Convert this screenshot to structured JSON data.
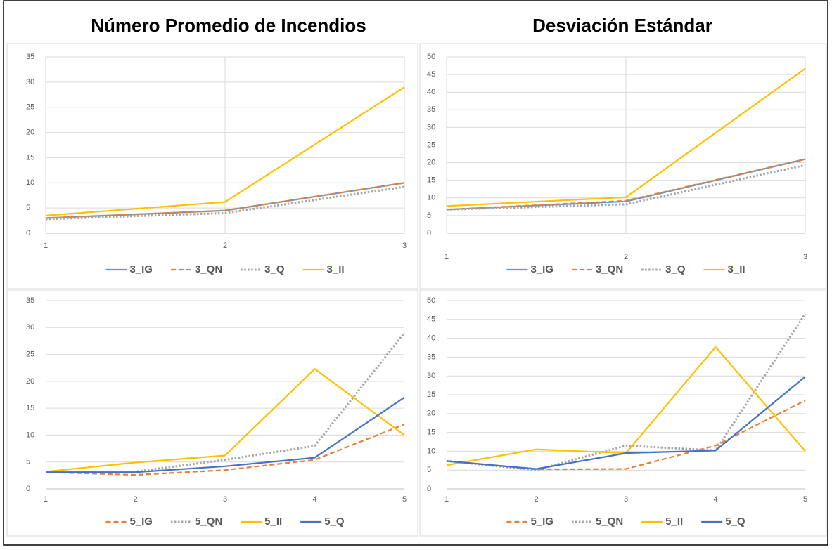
{
  "column_titles": [
    "Número Promedio de Incendios",
    "Desviación Estándar"
  ],
  "chart_data": [
    {
      "type": "line",
      "x": [
        1,
        2,
        3
      ],
      "xlim": [
        1,
        3
      ],
      "xticks": [
        1,
        2,
        3
      ],
      "ylim": [
        0,
        35
      ],
      "yticks": [
        0,
        5,
        10,
        15,
        20,
        25,
        30,
        35
      ],
      "grid": true,
      "xgrid": true,
      "series": [
        {
          "name": "3_IG",
          "color": "#5b9bd5",
          "dash": "solid",
          "values": [
            3,
            4.5,
            10
          ]
        },
        {
          "name": "3_QN",
          "color": "#ed7d31",
          "dash": "dash",
          "values": [
            3,
            4.5,
            10
          ]
        },
        {
          "name": "3_Q",
          "color": "#a5a5a5",
          "dash": "dot",
          "values": [
            2.8,
            4,
            9.2
          ]
        },
        {
          "name": "3_II",
          "color": "#ffc000",
          "dash": "solid",
          "values": [
            3.5,
            6.2,
            29
          ]
        }
      ]
    },
    {
      "type": "line",
      "x": [
        1,
        2,
        3
      ],
      "xlim": [
        1,
        3
      ],
      "xticks": [
        1,
        2,
        3
      ],
      "ylim": [
        0,
        50
      ],
      "yticks": [
        0,
        5,
        10,
        15,
        20,
        25,
        30,
        35,
        40,
        45,
        50
      ],
      "grid": true,
      "xgrid": true,
      "series": [
        {
          "name": "3_IG",
          "color": "#5b9bd5",
          "dash": "solid",
          "values": [
            6.7,
            9,
            21
          ]
        },
        {
          "name": "3_QN",
          "color": "#ed7d31",
          "dash": "dash",
          "values": [
            6.7,
            9.2,
            21
          ]
        },
        {
          "name": "3_Q",
          "color": "#a5a5a5",
          "dash": "dot",
          "values": [
            6.7,
            8.2,
            19.3
          ]
        },
        {
          "name": "3_II",
          "color": "#ffc000",
          "dash": "solid",
          "values": [
            7.7,
            10.2,
            46.7
          ]
        }
      ]
    },
    {
      "type": "line",
      "x": [
        1,
        2,
        3,
        4,
        5
      ],
      "xlim": [
        1,
        5
      ],
      "xticks": [
        1,
        2,
        3,
        4,
        5
      ],
      "ylim": [
        0,
        35
      ],
      "yticks": [
        0,
        5,
        10,
        15,
        20,
        25,
        30,
        35
      ],
      "grid": true,
      "xgrid": false,
      "series": [
        {
          "name": "5_IG",
          "color": "#ed7d31",
          "dash": "dash",
          "values": [
            3.1,
            2.6,
            3.5,
            5.4,
            12
          ]
        },
        {
          "name": "5_QN",
          "color": "#a5a5a5",
          "dash": "dot",
          "values": [
            3.1,
            3.2,
            5.4,
            8,
            29
          ]
        },
        {
          "name": "5_II",
          "color": "#ffc000",
          "dash": "solid",
          "values": [
            3.2,
            4.9,
            6.2,
            22.3,
            10
          ]
        },
        {
          "name": "5_Q",
          "color": "#4472c4",
          "dash": "solid",
          "values": [
            3.1,
            3.1,
            4.2,
            5.8,
            17
          ]
        }
      ]
    },
    {
      "type": "line",
      "x": [
        1,
        2,
        3,
        4,
        5
      ],
      "xlim": [
        1,
        5
      ],
      "xticks": [
        1,
        2,
        3,
        4,
        5
      ],
      "ylim": [
        0,
        50
      ],
      "yticks": [
        0,
        5,
        10,
        15,
        20,
        25,
        30,
        35,
        40,
        45,
        50
      ],
      "grid": true,
      "xgrid": false,
      "series": [
        {
          "name": "5_IG",
          "color": "#ed7d31",
          "dash": "dash",
          "values": [
            7.4,
            5.2,
            5.3,
            11.5,
            23.5
          ]
        },
        {
          "name": "5_QN",
          "color": "#a5a5a5",
          "dash": "dot",
          "values": [
            7.4,
            5,
            11.5,
            10.2,
            46.5
          ]
        },
        {
          "name": "5_II",
          "color": "#ffc000",
          "dash": "solid",
          "values": [
            6.3,
            10.5,
            9.5,
            37.7,
            10
          ]
        },
        {
          "name": "5_Q",
          "color": "#4472c4",
          "dash": "solid",
          "values": [
            7.4,
            5.3,
            9.5,
            10.2,
            29.8
          ]
        }
      ]
    }
  ]
}
